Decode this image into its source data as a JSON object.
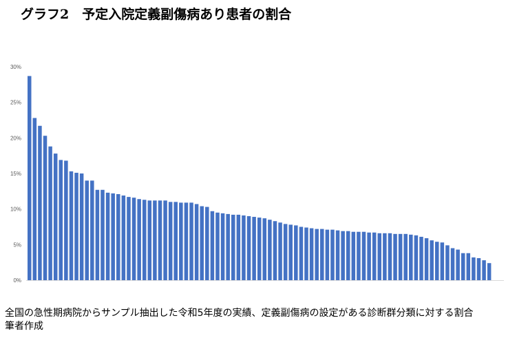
{
  "chart_data": {
    "type": "bar",
    "title": "グラフ2　予定入院定義副傷病あり患者の割合",
    "xlabel": "",
    "ylabel": "",
    "ylim": [
      0,
      30
    ],
    "yticks": [
      "0%",
      "5%",
      "10%",
      "15%",
      "20%",
      "25%",
      "30%"
    ],
    "grid": false,
    "bar_color": "#4472C4",
    "values": [
      28.7,
      22.8,
      21.7,
      20.3,
      18.8,
      17.8,
      16.9,
      16.8,
      15.3,
      15.1,
      15.0,
      14.0,
      14.0,
      12.7,
      12.7,
      12.3,
      12.2,
      12.1,
      11.9,
      11.7,
      11.6,
      11.4,
      11.3,
      11.2,
      11.2,
      11.2,
      11.2,
      11.0,
      11.0,
      10.9,
      10.9,
      10.9,
      10.7,
      10.4,
      10.3,
      9.7,
      9.5,
      9.4,
      9.3,
      9.2,
      9.2,
      9.1,
      9.0,
      8.9,
      8.8,
      8.7,
      8.5,
      8.3,
      8.1,
      7.9,
      7.8,
      7.7,
      7.5,
      7.4,
      7.3,
      7.2,
      7.2,
      7.1,
      7.1,
      7.0,
      6.9,
      6.9,
      6.8,
      6.8,
      6.8,
      6.7,
      6.7,
      6.6,
      6.6,
      6.6,
      6.5,
      6.5,
      6.5,
      6.4,
      6.3,
      6.1,
      5.9,
      5.6,
      5.4,
      5.3,
      4.9,
      4.5,
      4.3,
      3.8,
      3.8,
      3.2,
      3.1,
      2.8,
      2.4
    ]
  },
  "caption": {
    "line1": "全国の急性期病院からサンプル抽出した令和5年度の実績、定義副傷病の設定がある診断群分類に対する割合",
    "line2": "筆者作成"
  }
}
